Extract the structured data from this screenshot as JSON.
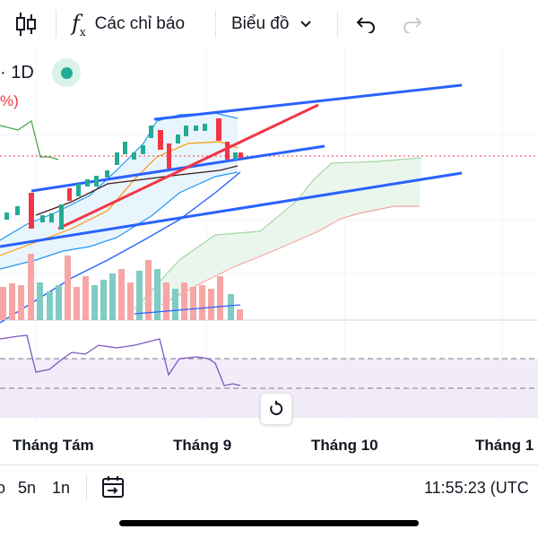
{
  "toolbar": {
    "indicators_label": "Các chỉ báo",
    "chart_type_label": "Biểu đồ"
  },
  "legend": {
    "interval": "· 1D",
    "change_fragment": "%)"
  },
  "colors": {
    "accent_blue": "#2962ff",
    "up_green": "#22ab94",
    "down_red": "#f23645",
    "rsi_purple": "#7e57c2",
    "cloud_green": "#a5d6a7",
    "cloud_red": "#f7a5a5"
  },
  "time_axis": {
    "labels": [
      "Tháng Tám",
      "Tháng 9",
      "Tháng 10",
      "Tháng 1"
    ]
  },
  "bottom_bar": {
    "ranges": [
      "o",
      "5n",
      "1n"
    ],
    "clock": "11:55:23 (UTC"
  },
  "icons": {
    "chart_style": "candles-icon",
    "indicators": "fx-icon",
    "chevron": "chevron-down-icon",
    "undo": "undo-icon",
    "redo": "redo-icon",
    "reset": "reset-icon",
    "goto_date": "calendar-arrow-icon"
  }
}
